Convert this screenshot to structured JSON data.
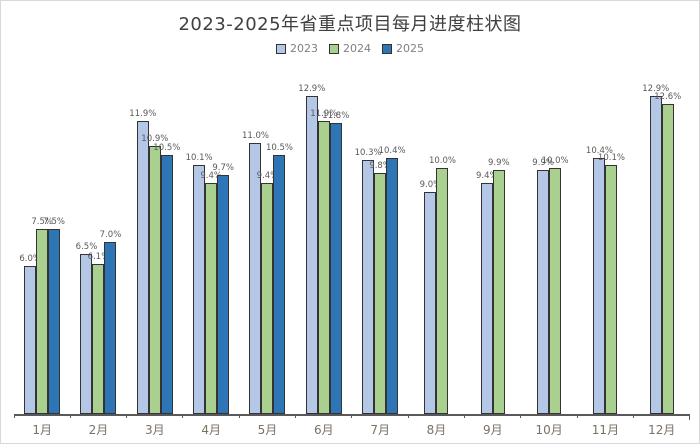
{
  "window": {
    "background": "#ffffff",
    "border_color": "#d9d9d9"
  },
  "chart_data": {
    "type": "bar",
    "title": "2023-2025年省重点项目每月进度柱状图",
    "categories": [
      "1月",
      "2月",
      "3月",
      "4月",
      "5月",
      "6月",
      "7月",
      "8月",
      "9月",
      "10月",
      "11月",
      "12月"
    ],
    "series": [
      {
        "name": "2023",
        "color": "#B4C7E7",
        "values": [
          6.0,
          6.5,
          11.9,
          10.1,
          11.0,
          12.9,
          10.3,
          9.0,
          9.4,
          9.9,
          10.4,
          12.9
        ]
      },
      {
        "name": "2024",
        "color": "#A9D08E",
        "values": [
          7.5,
          6.1,
          10.9,
          9.4,
          9.4,
          11.9,
          9.8,
          10.0,
          9.9,
          10.0,
          10.1,
          12.6
        ]
      },
      {
        "name": "2025",
        "color": "#2E75B6",
        "values": [
          7.5,
          7.0,
          10.5,
          9.7,
          10.5,
          11.8,
          10.4,
          null,
          null,
          null,
          null,
          null
        ]
      }
    ],
    "value_suffix": "%",
    "ylim": [
      0,
      13.4
    ],
    "grid": false,
    "legend_position": "top-center",
    "data_labels": true,
    "bar_border_color": "#333333",
    "value_label_color": "#595959",
    "axis_color": "#595959",
    "category_label_color": "#7a7263",
    "legend_text_color": "#808080",
    "title_color": "#404040"
  }
}
